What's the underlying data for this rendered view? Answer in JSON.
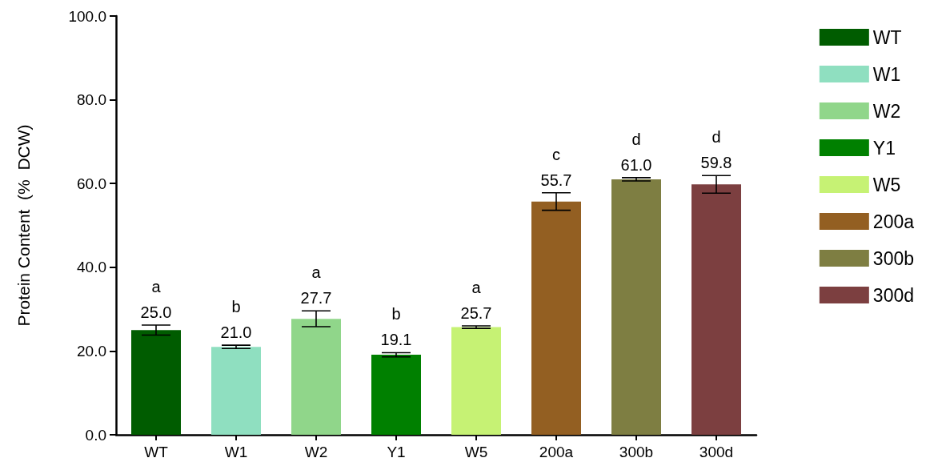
{
  "chart_data": {
    "type": "bar",
    "ylabel": "Protein Content  (%  DCW)",
    "categories": [
      "WT",
      "W1",
      "W2",
      "Y1",
      "W5",
      "200a",
      "300b",
      "300d"
    ],
    "series": [
      {
        "name": "WT",
        "color": "#005c00",
        "values": [
          25.0,
          null,
          null,
          null,
          null,
          null,
          null,
          null
        ],
        "errors": [
          1.2,
          null,
          null,
          null,
          null,
          null,
          null,
          null
        ],
        "value_labels": [
          "25.0",
          null,
          null,
          null,
          null,
          null,
          null,
          null
        ]
      },
      {
        "name": "W1",
        "color": "#8fdfc0",
        "values": [
          null,
          21.0,
          null,
          null,
          null,
          null,
          null,
          null
        ],
        "errors": [
          null,
          0.4,
          null,
          null,
          null,
          null,
          null,
          null
        ],
        "value_labels": [
          null,
          "21.0",
          null,
          null,
          null,
          null,
          null,
          null
        ]
      },
      {
        "name": "W2",
        "color": "#90d68a",
        "values": [
          null,
          null,
          27.7,
          null,
          null,
          null,
          null,
          null
        ],
        "errors": [
          null,
          null,
          1.9,
          null,
          null,
          null,
          null,
          null
        ],
        "value_labels": [
          null,
          null,
          "27.7",
          null,
          null,
          null,
          null,
          null
        ]
      },
      {
        "name": "Y1",
        "color": "#008000",
        "values": [
          null,
          null,
          null,
          19.1,
          null,
          null,
          null,
          null
        ],
        "errors": [
          null,
          null,
          null,
          0.5,
          null,
          null,
          null,
          null
        ],
        "value_labels": [
          null,
          null,
          null,
          "19.1",
          null,
          null,
          null,
          null
        ]
      },
      {
        "name": "W5",
        "color": "#c6f274",
        "values": [
          null,
          null,
          null,
          null,
          25.7,
          null,
          null,
          null
        ],
        "errors": [
          null,
          null,
          null,
          null,
          0.3,
          null,
          null,
          null
        ],
        "value_labels": [
          null,
          null,
          null,
          null,
          "25.7",
          null,
          null,
          null
        ]
      },
      {
        "name": "200a",
        "color": "#935f22",
        "values": [
          null,
          null,
          null,
          null,
          null,
          55.7,
          null,
          null
        ],
        "errors": [
          null,
          null,
          null,
          null,
          null,
          2.1,
          null,
          null
        ],
        "value_labels": [
          null,
          null,
          null,
          null,
          null,
          "55.7",
          null,
          null
        ]
      },
      {
        "name": "300b",
        "color": "#7e7e42",
        "values": [
          null,
          null,
          null,
          null,
          null,
          null,
          61.0,
          null
        ],
        "errors": [
          null,
          null,
          null,
          null,
          null,
          null,
          0.4,
          null
        ],
        "value_labels": [
          null,
          null,
          null,
          null,
          null,
          null,
          "61.0",
          null
        ]
      },
      {
        "name": "300d",
        "color": "#7c3f40",
        "values": [
          null,
          null,
          null,
          null,
          null,
          null,
          null,
          59.8
        ],
        "errors": [
          null,
          null,
          null,
          null,
          null,
          null,
          null,
          2.1
        ],
        "value_labels": [
          null,
          null,
          null,
          null,
          null,
          null,
          null,
          "59.8"
        ]
      }
    ],
    "annotations": [
      {
        "text": "a",
        "x": "WT",
        "y": 26.2
      },
      {
        "text": "b",
        "x": "W1",
        "y": 21.4
      },
      {
        "text": "a",
        "x": "W2",
        "y": 29.6
      },
      {
        "text": "b",
        "x": "Y1",
        "y": 19.6
      },
      {
        "text": "a",
        "x": "W5",
        "y": 26.0
      },
      {
        "text": "c",
        "x": "200a",
        "y": 57.8
      },
      {
        "text": "d",
        "x": "300b",
        "y": 61.4
      },
      {
        "text": "d",
        "x": "300d",
        "y": 61.9
      }
    ],
    "ylim": [
      0,
      100
    ],
    "yticks": [
      {
        "value": 0,
        "label": "0.0"
      },
      {
        "value": 20,
        "label": "20.0"
      },
      {
        "value": 40,
        "label": "40.0"
      },
      {
        "value": 60,
        "label": "60.0"
      },
      {
        "value": 80,
        "label": "80.0"
      },
      {
        "value": 100,
        "label": "100.0"
      }
    ],
    "legend": "right",
    "grid": false
  }
}
